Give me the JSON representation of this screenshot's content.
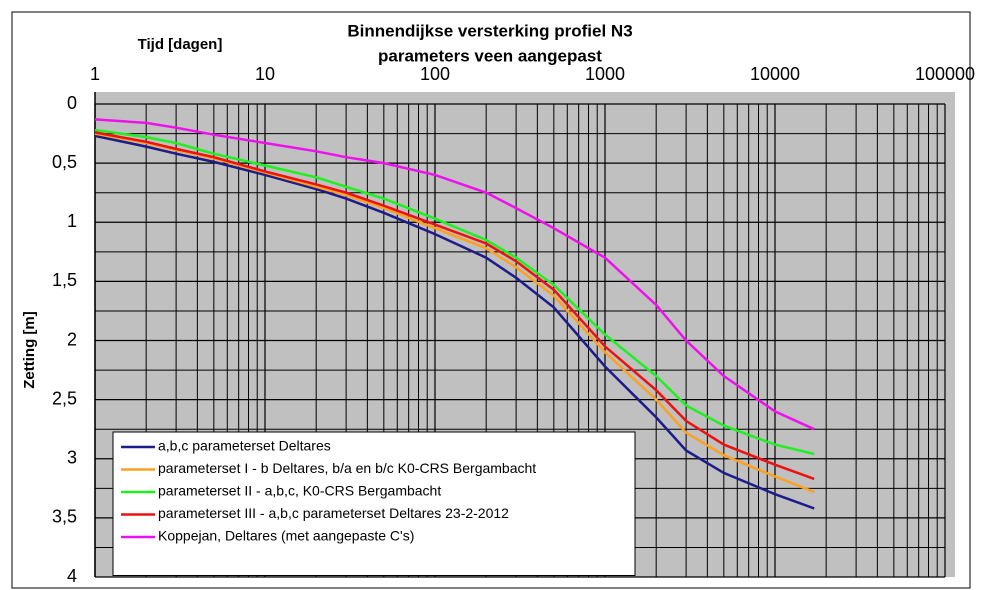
{
  "chart_data": {
    "type": "line",
    "title": "Binnendijkse versterking profiel N3",
    "subtitle": "parameters veen aangepast",
    "x_label": "Tijd [dagen]",
    "y_label": "Zetting [m]",
    "x_scale": "log",
    "y_inverted": true,
    "grid": true,
    "minor_grid": true,
    "legend_position": "lower left",
    "background": "#c0c0c0",
    "xlim": [
      1,
      100000
    ],
    "xticks": [
      1,
      10,
      100,
      1000,
      10000,
      100000
    ],
    "ylim": [
      0,
      4
    ],
    "yticks": [
      0,
      {
        "value": 0.5,
        "label": "0,5"
      },
      1,
      {
        "value": 1.5,
        "label": "1,5"
      },
      2,
      {
        "value": 2.5,
        "label": "2,5"
      },
      3,
      {
        "value": 3.5,
        "label": "3,5"
      },
      4
    ],
    "x": [
      1,
      2,
      3,
      5,
      10,
      20,
      30,
      50,
      100,
      200,
      300,
      500,
      1000,
      2000,
      3000,
      5000,
      10000,
      17000
    ],
    "series": [
      {
        "name": "a,b,c parameterset Deltares",
        "color": "#1c1c8c",
        "values": [
          0.27,
          0.36,
          0.42,
          0.49,
          0.6,
          0.72,
          0.8,
          0.92,
          1.1,
          1.3,
          1.47,
          1.72,
          2.22,
          2.65,
          2.93,
          3.12,
          3.3,
          3.42
        ]
      },
      {
        "name": "parameterset I - b Deltares, b/a en b/c K0-CRS Bergambacht",
        "color": "#ffa020",
        "values": [
          0.25,
          0.33,
          0.39,
          0.46,
          0.58,
          0.7,
          0.77,
          0.88,
          1.05,
          1.22,
          1.38,
          1.62,
          2.1,
          2.5,
          2.78,
          2.97,
          3.15,
          3.28
        ]
      },
      {
        "name": "parameterset II - a,b,c, K0-CRS Bergambacht",
        "color": "#20f020",
        "values": [
          0.22,
          0.28,
          0.33,
          0.42,
          0.52,
          0.62,
          0.7,
          0.8,
          0.97,
          1.15,
          1.3,
          1.53,
          1.95,
          2.3,
          2.55,
          2.72,
          2.88,
          2.96
        ]
      },
      {
        "name": "parameterset III - a,b,c parameterset Deltares 23-2-2012",
        "color": "#ee1111",
        "values": [
          0.24,
          0.32,
          0.38,
          0.45,
          0.57,
          0.68,
          0.75,
          0.86,
          1.02,
          1.18,
          1.33,
          1.57,
          2.05,
          2.42,
          2.68,
          2.88,
          3.05,
          3.17
        ]
      },
      {
        "name": "Koppejan, Deltares (met aangepaste C's)",
        "color": "#ee10ee",
        "values": [
          0.13,
          0.16,
          0.2,
          0.26,
          0.33,
          0.4,
          0.45,
          0.5,
          0.6,
          0.75,
          0.88,
          1.05,
          1.3,
          1.7,
          2.0,
          2.3,
          2.6,
          2.75
        ]
      }
    ]
  }
}
